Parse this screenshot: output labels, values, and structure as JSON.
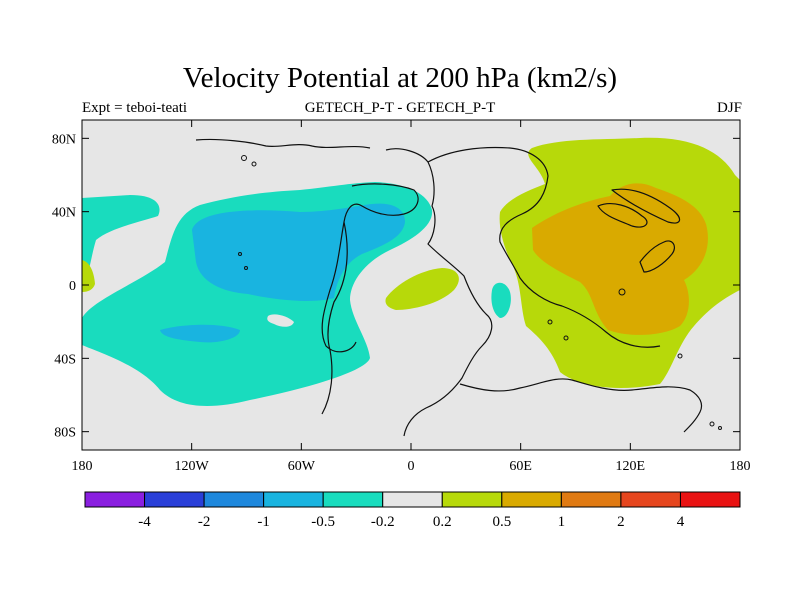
{
  "figure": {
    "title": "Velocity Potential at 200 hPa (km2/s)",
    "left_label": "Expt = teboi-teati",
    "center_label": "GETECH_P-T - GETECH_P-T",
    "right_label": "DJF"
  },
  "axes": {
    "lon_ticks": [
      {
        "value": -180,
        "label": "180"
      },
      {
        "value": -120,
        "label": "120W"
      },
      {
        "value": -60,
        "label": "60W"
      },
      {
        "value": 0,
        "label": "0"
      },
      {
        "value": 60,
        "label": "60E"
      },
      {
        "value": 120,
        "label": "120E"
      },
      {
        "value": 180,
        "label": "180"
      }
    ],
    "lat_ticks": [
      {
        "value": 80,
        "label": "80N"
      },
      {
        "value": 40,
        "label": "40N"
      },
      {
        "value": 0,
        "label": "0"
      },
      {
        "value": -40,
        "label": "40S"
      },
      {
        "value": -80,
        "label": "80S"
      }
    ]
  },
  "colorbar": {
    "colors": [
      "#8a1fe0",
      "#2a3fd8",
      "#1e88dd",
      "#19b4e0",
      "#19dcbe",
      "#e6e6e6",
      "#b7d90a",
      "#d9aa00",
      "#e07a12",
      "#e6461e",
      "#e81212"
    ],
    "labels": [
      "-4",
      "-2",
      "-1",
      "-0.5",
      "-0.2",
      "0.2",
      "0.5",
      "1",
      "2",
      "4"
    ]
  },
  "chart_data": {
    "type": "contour_map",
    "variable": "Velocity Potential at 200 hPa",
    "units": "km2/s",
    "season": "DJF",
    "levels": [
      -4,
      -2,
      -1,
      -0.5,
      -0.2,
      0.2,
      0.5,
      1,
      2,
      4
    ],
    "lon_range": [
      -180,
      180
    ],
    "lat_range": [
      -90,
      90
    ],
    "features": [
      {
        "name": "western-negative-center",
        "range": "-1 to -0.5",
        "lon": -95,
        "lat": 20
      },
      {
        "name": "western-negative-anomaly",
        "range": "-0.5 to -0.2",
        "lon": -100,
        "lat": 5
      },
      {
        "name": "eastern-positive-anomaly",
        "range": "0.2 to 0.5",
        "lon": 110,
        "lat": 10
      },
      {
        "name": "eastern-positive-center",
        "range": "0.5 to 1",
        "lon": 110,
        "lat": 5
      }
    ]
  }
}
